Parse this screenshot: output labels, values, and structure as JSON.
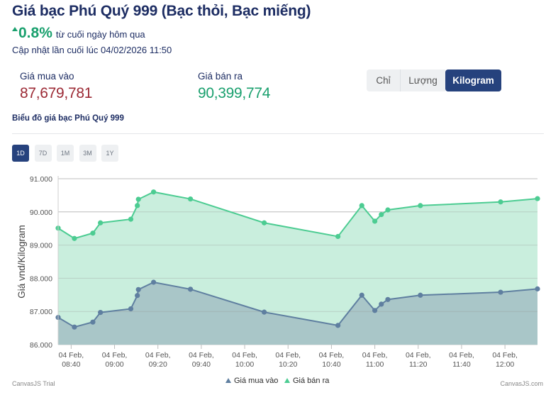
{
  "header": {
    "title": "Giá bạc Phú Quý 999 (Bạc thỏi, Bạc miếng)",
    "change_value": "0.8%",
    "change_note": "từ cuối ngày hôm qua",
    "updated": "Cập nhật lần cuối lúc 04/02/2026 11:50"
  },
  "prices": {
    "buy_label": "Giá mua vào",
    "buy_value": "87,679,781",
    "sell_label": "Giá bán ra",
    "sell_value": "90,399,774"
  },
  "unit_tabs": [
    "Chỉ",
    "Lượng",
    "Kilogram"
  ],
  "selected_unit": "Kilogram",
  "chart_heading": "Biểu đồ giá bạc Phú Quý 999",
  "range_tabs": [
    "1D",
    "7D",
    "1M",
    "3M",
    "1Y"
  ],
  "selected_range": "1D",
  "colors": {
    "buy_line": "#5f7fa0",
    "buy_fill": "#a9c6c8",
    "sell_line": "#4ccc92",
    "sell_fill": "#c9eedd",
    "accent": "#26427d"
  },
  "chart_data": {
    "type": "area",
    "title": "",
    "xlabel": "",
    "ylabel": "Giá vnd/Kilogram",
    "ylim": [
      86000,
      91000
    ],
    "y_ticks": [
      "86.000",
      "87.000",
      "88.000",
      "89.000",
      "90.000",
      "91.000"
    ],
    "y_tick_values": [
      86000,
      87000,
      88000,
      89000,
      90000,
      91000
    ],
    "xlim_minutes": [
      514,
      735
    ],
    "x_tick_minutes": [
      520,
      540,
      560,
      580,
      600,
      620,
      640,
      660,
      680,
      700,
      720
    ],
    "x_tick_date": "04 Feb,",
    "x_tick_labels": [
      "08:40",
      "09:00",
      "09:20",
      "09:40",
      "10:00",
      "10:20",
      "10:40",
      "11:00",
      "11:20",
      "11:40",
      "12:00"
    ],
    "x_minutes": [
      514,
      521.5,
      530,
      533.5,
      547.5,
      550.5,
      551,
      558,
      575,
      609,
      643,
      654,
      660,
      663,
      666,
      681,
      718,
      735
    ],
    "series": [
      {
        "name": "Giá mua vào",
        "values": [
          86820,
          86530,
          86680,
          86970,
          87080,
          87480,
          87660,
          87880,
          87670,
          86980,
          86580,
          87490,
          87030,
          87220,
          87360,
          87490,
          87580,
          87680
        ]
      },
      {
        "name": "Giá bán ra",
        "values": [
          89510,
          89200,
          89360,
          89670,
          89780,
          90190,
          90380,
          90600,
          90390,
          89670,
          89260,
          90190,
          89720,
          89920,
          90060,
          90190,
          90300,
          90400
        ]
      }
    ],
    "legend": [
      "Giá mua vào",
      "Giá bán ra"
    ],
    "legend_position": "bottom-center",
    "credit_left": "CanvasJS Trial",
    "credit_right": "CanvasJS.com"
  }
}
